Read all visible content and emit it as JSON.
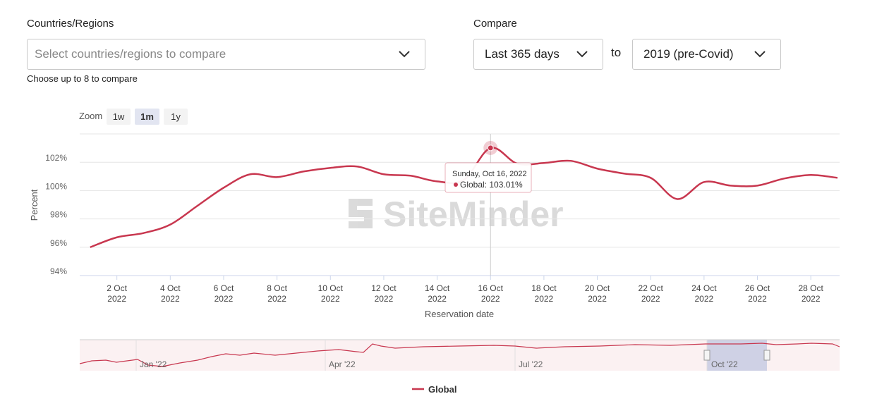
{
  "filters": {
    "countries_label": "Countries/Regions",
    "countries_placeholder": "Select countries/regions to compare",
    "countries_help": "Choose up to 8 to compare",
    "compare_label": "Compare",
    "period": "Last 365 days",
    "to": "to",
    "baseline": "2019 (pre-Covid)"
  },
  "zoom": {
    "label": "Zoom",
    "options": [
      "1w",
      "1m",
      "1y"
    ]
  },
  "watermark": "SiteMinder",
  "chart_data": {
    "type": "line",
    "x_label": "Reservation date",
    "y_label": "Percent",
    "x": [
      "2022-10-01",
      "2022-10-02",
      "2022-10-03",
      "2022-10-04",
      "2022-10-05",
      "2022-10-06",
      "2022-10-07",
      "2022-10-08",
      "2022-10-09",
      "2022-10-10",
      "2022-10-11",
      "2022-10-12",
      "2022-10-13",
      "2022-10-14",
      "2022-10-15",
      "2022-10-16",
      "2022-10-17",
      "2022-10-18",
      "2022-10-19",
      "2022-10-20",
      "2022-10-21",
      "2022-10-22",
      "2022-10-23",
      "2022-10-24",
      "2022-10-25",
      "2022-10-26",
      "2022-10-27",
      "2022-10-28",
      "2022-10-29"
    ],
    "series": [
      {
        "name": "Global",
        "color": "#c8374f",
        "values": [
          96.0,
          96.7,
          97.0,
          97.6,
          98.9,
          100.2,
          101.15,
          100.95,
          101.35,
          101.6,
          101.7,
          101.15,
          101.05,
          100.65,
          100.75,
          103.01,
          101.9,
          101.95,
          102.1,
          101.55,
          101.2,
          100.9,
          99.4,
          100.6,
          100.35,
          100.35,
          100.85,
          101.1,
          100.9
        ]
      }
    ],
    "xlim": [
      "2022-09-30",
      "2022-10-29"
    ],
    "xticks": [
      {
        "value": "2022-10-02",
        "label": "2 Oct 2022"
      },
      {
        "value": "2022-10-04",
        "label": "4 Oct 2022"
      },
      {
        "value": "2022-10-06",
        "label": "6 Oct 2022"
      },
      {
        "value": "2022-10-08",
        "label": "8 Oct 2022"
      },
      {
        "value": "2022-10-10",
        "label": "10 Oct 2022"
      },
      {
        "value": "2022-10-12",
        "label": "12 Oct 2022"
      },
      {
        "value": "2022-10-14",
        "label": "14 Oct 2022"
      },
      {
        "value": "2022-10-16",
        "label": "16 Oct 2022"
      },
      {
        "value": "2022-10-18",
        "label": "18 Oct 2022"
      },
      {
        "value": "2022-10-20",
        "label": "20 Oct 2022"
      },
      {
        "value": "2022-10-22",
        "label": "22 Oct 2022"
      },
      {
        "value": "2022-10-24",
        "label": "24 Oct 2022"
      },
      {
        "value": "2022-10-26",
        "label": "26 Oct 2022"
      },
      {
        "value": "2022-10-28",
        "label": "28 Oct 2022"
      }
    ],
    "ylim": [
      94,
      104
    ],
    "yticks": [
      {
        "value": 94,
        "label": "94%"
      },
      {
        "value": 96,
        "label": "96%"
      },
      {
        "value": 98,
        "label": "98%"
      },
      {
        "value": 100,
        "label": "100%"
      },
      {
        "value": 102,
        "label": "102%"
      }
    ],
    "grid": true,
    "tooltip": {
      "date": "Sunday, Oct 16, 2022",
      "text": "Global: 103.01%",
      "index": 15
    }
  },
  "navigator": {
    "labels": [
      "Jan '22",
      "Apr '22",
      "Jul '22",
      "Oct '22"
    ]
  }
}
